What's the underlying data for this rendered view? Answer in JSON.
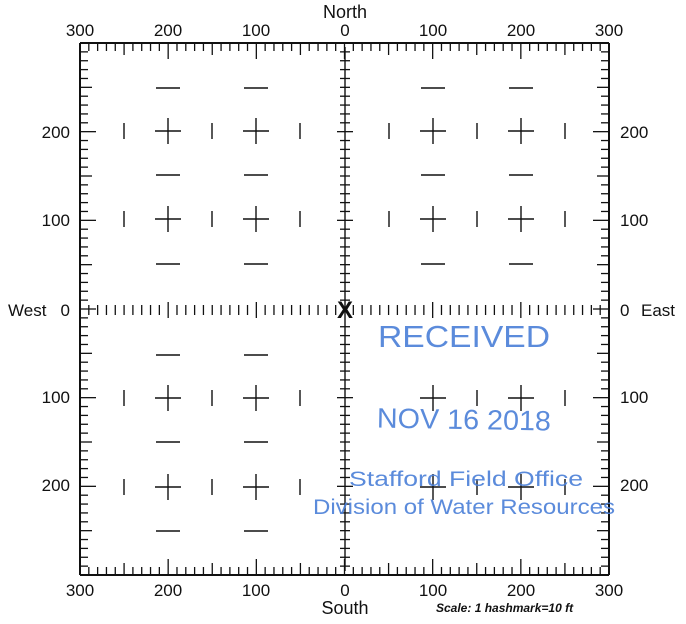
{
  "compass": {
    "north": "North",
    "south": "South",
    "west": "West",
    "east": "East"
  },
  "top_axis_labels": [
    "300",
    "200",
    "100",
    "0",
    "100",
    "200",
    "300"
  ],
  "bottom_axis_labels": [
    "300",
    "200",
    "100",
    "0",
    "100",
    "200",
    "300"
  ],
  "left_axis_labels": [
    "200",
    "100",
    "0",
    "100",
    "200"
  ],
  "right_axis_labels": [
    "200",
    "100",
    "0",
    "100",
    "200"
  ],
  "marker": {
    "symbol": "X",
    "x_ft": 0,
    "y_ft": 0
  },
  "scale_note": "Scale:  1 hashmark=10 ft",
  "stamp": {
    "received": "RECEIVED",
    "date": "NOV 16 2018",
    "office": "Stafford Field Office",
    "division": "Division of Water Resources",
    "color": "#4a7fd8"
  },
  "ink_color": "#111111"
}
